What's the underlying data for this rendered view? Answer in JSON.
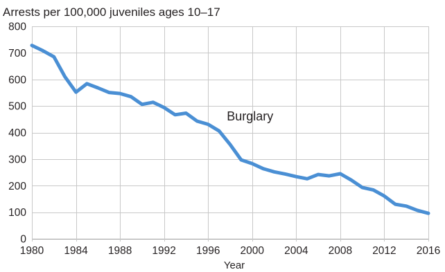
{
  "chart_data": {
    "type": "line",
    "title": "Arrests per 100,000 juveniles ages 10–17",
    "xlabel": "Year",
    "ylabel": "",
    "xlim": [
      1980,
      2016
    ],
    "ylim": [
      0,
      800
    ],
    "x_ticks": [
      1980,
      1984,
      1988,
      1992,
      1996,
      2000,
      2004,
      2008,
      2012,
      2016
    ],
    "y_ticks": [
      0,
      100,
      200,
      300,
      400,
      500,
      600,
      700,
      800
    ],
    "x_tick_labels": [
      "1980",
      "1984",
      "1988",
      "1992",
      "1996",
      "2000",
      "2004",
      "2008",
      "2012",
      "2016"
    ],
    "y_tick_labels": [
      "0",
      "100",
      "200",
      "300",
      "400",
      "500",
      "600",
      "700",
      "800"
    ],
    "grid": "horizontal",
    "series": [
      {
        "name": "Burglary",
        "color": "#4a8fd4",
        "x": [
          1980,
          1981,
          1982,
          1983,
          1984,
          1985,
          1986,
          1987,
          1988,
          1989,
          1990,
          1991,
          1992,
          1993,
          1994,
          1995,
          1996,
          1997,
          1998,
          1999,
          2000,
          2001,
          2002,
          2003,
          2004,
          2005,
          2006,
          2007,
          2008,
          2009,
          2010,
          2011,
          2012,
          2013,
          2014,
          2015,
          2016
        ],
        "y": [
          728,
          708,
          685,
          610,
          552,
          584,
          568,
          551,
          547,
          535,
          506,
          514,
          494,
          467,
          473,
          443,
          431,
          406,
          355,
          297,
          283,
          264,
          252,
          244,
          234,
          226,
          242,
          237,
          245,
          221,
          193,
          184,
          161,
          130,
          123,
          107,
          96
        ]
      }
    ],
    "annotations": [
      {
        "text": "Burglary",
        "x": 1997.7,
        "y": 445
      }
    ]
  }
}
